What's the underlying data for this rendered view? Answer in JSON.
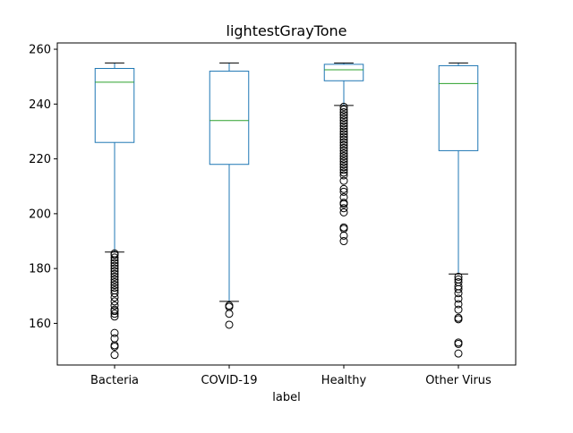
{
  "chart_data": {
    "type": "box",
    "title": "lightestGrayTone",
    "xlabel": "label",
    "ylabel": "",
    "ylim": [
      144.8,
      262.3
    ],
    "yticks": [
      160,
      180,
      200,
      220,
      240,
      260
    ],
    "grid": false,
    "colors": {
      "box": "#1f77b4",
      "median": "#2ca02c",
      "whisker": "#1f77b4",
      "cap": "#000000",
      "flier": "#000000"
    },
    "categories": [
      "Bacteria",
      "COVID-19",
      "Healthy",
      "Other Virus"
    ],
    "boxes": [
      {
        "category": "Bacteria",
        "whisker_low": 186,
        "q1": 226,
        "median": 248,
        "q3": 253,
        "whisker_high": 255,
        "outliers": [
          148.5,
          151.5,
          152,
          154.5,
          156.5,
          162.5,
          163.5,
          164.5,
          165,
          166.5,
          168,
          169.5,
          171,
          172,
          173,
          174,
          175,
          176,
          177,
          178,
          179,
          180,
          181,
          182,
          183,
          184,
          185,
          185.5
        ]
      },
      {
        "category": "COVID-19",
        "whisker_low": 168,
        "q1": 218,
        "median": 234,
        "q3": 252,
        "whisker_high": 255,
        "outliers": [
          159.5,
          163.5,
          166,
          166.5
        ]
      },
      {
        "category": "Healthy",
        "whisker_low": 239.5,
        "q1": 248.5,
        "median": 252.5,
        "q3": 254.5,
        "whisker_high": 255,
        "outliers": [
          190,
          192,
          194.5,
          195,
          200.5,
          202,
          203.5,
          204,
          206,
          208,
          209,
          212,
          214,
          215,
          216,
          217,
          218,
          219,
          220,
          221,
          222,
          223,
          224,
          225,
          226,
          227,
          228,
          229,
          230,
          231,
          232,
          233,
          234,
          235,
          236,
          237,
          238,
          239
        ]
      },
      {
        "category": "Other Virus",
        "whisker_low": 178,
        "q1": 223,
        "median": 247.5,
        "q3": 254,
        "whisker_high": 255,
        "outliers": [
          149,
          152.5,
          153,
          161.5,
          162,
          165,
          167,
          169,
          171,
          172.5,
          173.5,
          175,
          176,
          177
        ]
      }
    ]
  }
}
